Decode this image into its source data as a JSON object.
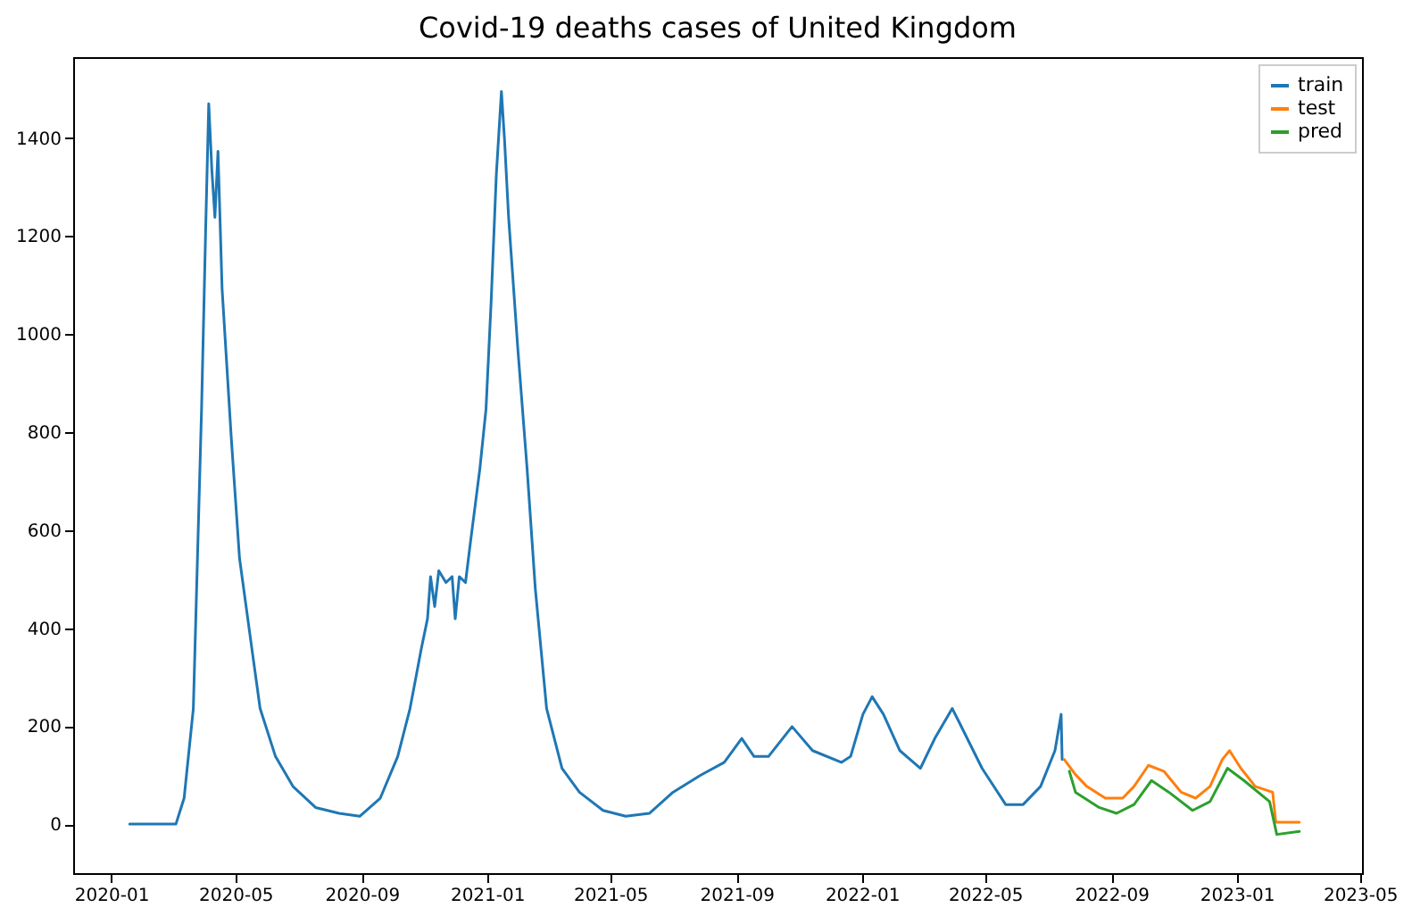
{
  "chart_data": {
    "type": "line",
    "title": "Covid-19 deaths cases of United Kingdom",
    "xlim": [
      "2019-11-25",
      "2023-05-03"
    ],
    "ylim": [
      -100,
      1565
    ],
    "xticks": [
      "2020-01",
      "2020-05",
      "2020-09",
      "2021-01",
      "2021-05",
      "2021-09",
      "2022-01",
      "2022-05",
      "2022-09",
      "2023-01",
      "2023-05"
    ],
    "yticks": [
      0,
      200,
      400,
      600,
      800,
      1000,
      1200,
      1400
    ],
    "grid": false,
    "legend": "top right",
    "line_style": "solid",
    "series": [
      {
        "name": "train",
        "color": "#1f77b4",
        "x": [
          "2020-01-19",
          "2020-03-04",
          "2020-03-12",
          "2020-03-21",
          "2020-03-29",
          "2020-04-02",
          "2020-04-05",
          "2020-04-08",
          "2020-04-11",
          "2020-04-14",
          "2020-04-18",
          "2020-04-27",
          "2020-05-05",
          "2020-05-17",
          "2020-05-25",
          "2020-06-09",
          "2020-06-26",
          "2020-07-18",
          "2020-08-10",
          "2020-08-30",
          "2020-09-19",
          "2020-10-06",
          "2020-10-18",
          "2020-10-29",
          "2020-11-04",
          "2020-11-07",
          "2020-11-11",
          "2020-11-15",
          "2020-11-22",
          "2020-11-28",
          "2020-12-01",
          "2020-12-05",
          "2020-12-11",
          "2020-12-16",
          "2020-12-25",
          "2020-12-31",
          "2021-01-05",
          "2021-01-10",
          "2021-01-15",
          "2021-01-18",
          "2021-01-22",
          "2021-01-31",
          "2021-02-09",
          "2021-02-17",
          "2021-02-28",
          "2021-03-15",
          "2021-04-01",
          "2021-04-24",
          "2021-05-16",
          "2021-06-08",
          "2021-07-01",
          "2021-07-28",
          "2021-08-20",
          "2021-09-06",
          "2021-09-18",
          "2021-10-02",
          "2021-10-25",
          "2021-11-14",
          "2021-12-12",
          "2021-12-21",
          "2022-01-02",
          "2022-01-11",
          "2022-01-22",
          "2022-02-07",
          "2022-02-27",
          "2022-03-13",
          "2022-03-30",
          "2022-04-05",
          "2022-04-28",
          "2022-05-21",
          "2022-06-07",
          "2022-06-24",
          "2022-07-08",
          "2022-07-14",
          "2022-07-15"
        ],
        "values": [
          0,
          0,
          53,
          236,
          847,
          1214,
          1470,
          1336,
          1238,
          1373,
          1092,
          786,
          542,
          358,
          236,
          138,
          77,
          34,
          22,
          16,
          53,
          138,
          236,
          358,
          419,
          505,
          444,
          517,
          493,
          505,
          419,
          505,
          493,
          578,
          725,
          847,
          1067,
          1324,
          1495,
          1397,
          1238,
          969,
          725,
          480,
          236,
          114,
          65,
          28,
          16,
          22,
          65,
          100,
          126,
          175,
          138,
          138,
          199,
          150,
          126,
          138,
          224,
          260,
          224,
          150,
          114,
          175,
          236,
          211,
          114,
          40,
          40,
          77,
          150,
          224,
          132
        ]
      },
      {
        "name": "test",
        "color": "#ff7f0e",
        "x": [
          "2022-07-17",
          "2022-07-28",
          "2022-08-08",
          "2022-08-26",
          "2022-09-12",
          "2022-09-23",
          "2022-10-07",
          "2022-10-22",
          "2022-11-08",
          "2022-11-22",
          "2022-12-06",
          "2022-12-18",
          "2022-12-25",
          "2023-01-05",
          "2023-01-19",
          "2023-02-05",
          "2023-02-08",
          "2023-03-03"
        ],
        "values": [
          132,
          101,
          77,
          53,
          53,
          77,
          120,
          108,
          65,
          53,
          77,
          132,
          150,
          114,
          77,
          65,
          4,
          4
        ]
      },
      {
        "name": "pred",
        "color": "#2ca02c",
        "x": [
          "2022-07-22",
          "2022-07-28",
          "2022-08-20",
          "2022-09-06",
          "2022-09-23",
          "2022-10-10",
          "2022-10-27",
          "2022-11-19",
          "2022-12-06",
          "2022-12-23",
          "2023-01-08",
          "2023-02-02",
          "2023-02-09",
          "2023-03-03"
        ],
        "values": [
          108,
          65,
          34,
          22,
          40,
          89,
          65,
          28,
          46,
          114,
          89,
          46,
          -21,
          -15
        ]
      }
    ]
  }
}
